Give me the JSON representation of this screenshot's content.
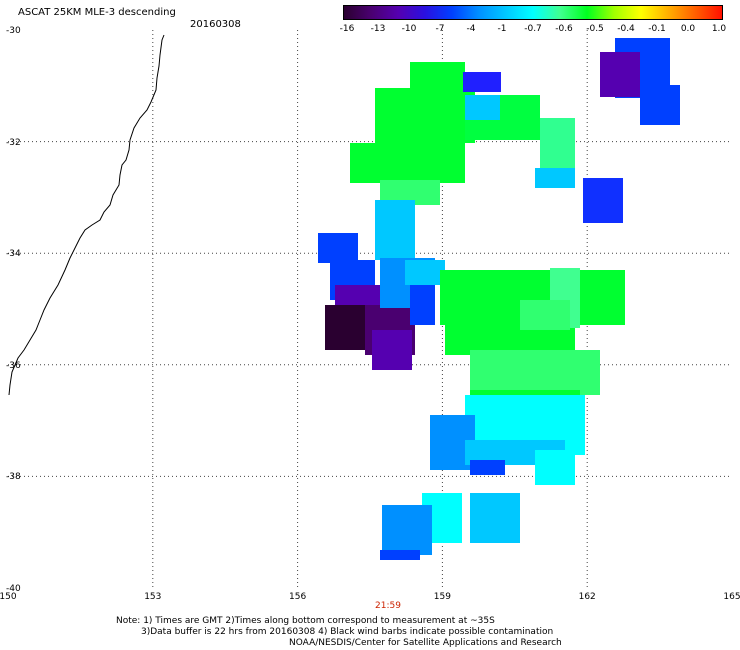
{
  "header": {
    "title": "ASCAT 25KM MLE-3 descending",
    "date": "20160308"
  },
  "colorbar": {
    "labels": [
      "-16",
      "-13",
      "-10",
      "-7",
      "-4",
      "-1",
      "-0.7",
      "-0.6",
      "-0.5",
      "-0.4",
      "-0.1",
      "0.0",
      "1.0"
    ],
    "colors": [
      "#2a0030",
      "#4a0070",
      "#5500b0",
      "#2a10e0",
      "#0040ff",
      "#0090ff",
      "#00c8ff",
      "#00ffff",
      "#40ff90",
      "#00ff20",
      "#a0ff00",
      "#ffff00",
      "#ffb000",
      "#ff6000",
      "#ff1000"
    ]
  },
  "axes": {
    "lat_labels": [
      "-30",
      "-32",
      "-34",
      "-36",
      "-38",
      "-40"
    ],
    "lon_labels": [
      "150",
      "153",
      "156",
      "159",
      "162",
      "165"
    ],
    "lat_values": [
      -30,
      -32,
      -34,
      -36,
      -38,
      -40
    ],
    "lon_values": [
      150,
      153,
      156,
      159,
      162,
      165
    ]
  },
  "time_label": "21:59",
  "notes": [
    "Note: 1) Times are GMT 2)Times along bottom correspond to measurement at ~35S",
    "3)Data buffer is 22 hrs from 20160308 4) Black wind barbs indicate possible contamination",
    "NOAA/NESDIS/Center for Satellite Applications and Research"
  ]
}
